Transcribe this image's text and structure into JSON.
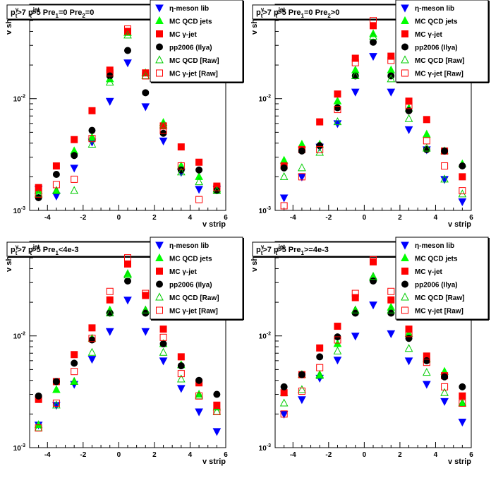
{
  "chart_data": [
    {
      "type": "scatter",
      "title": "p_t^γ>7  p_t^jet>5  Pre_1=0  Pre_2=0",
      "title_parts": {
        "a": "p",
        "a_sup": "γ",
        "a_sub": "t",
        "a_rest": ">7",
        "b": "p",
        "b_sup": "jet",
        "b_sub": "t",
        "b_rest": ">5",
        "c": "Pre",
        "c_sub": "1",
        "c_rest": "=0",
        "d": "Pre",
        "d_sub": "2",
        "d_rest": "=0"
      },
      "xlabel": "v strip",
      "ylabel": "v shape",
      "xlim": [
        -5,
        6
      ],
      "ylim": [
        0.001,
        0.07
      ],
      "yscale": "log",
      "x_ticks": [
        "-4",
        "-2",
        "0",
        "2",
        "4",
        "6"
      ],
      "y_ticks": [
        "10^-3",
        "10^-2"
      ],
      "grid": false,
      "legend_position": "top-right",
      "x": [
        -4.5,
        -3.5,
        -2.5,
        -1.5,
        -0.5,
        0.5,
        1.5,
        2.5,
        3.5,
        4.5,
        5.5
      ],
      "series": [
        {
          "name": "η-meson lib",
          "marker": "triangle-down",
          "color": "#0000ff",
          "filled": true,
          "values": [
            0.00155,
            0.00135,
            0.0024,
            0.0041,
            0.0095,
            0.021,
            0.0085,
            0.0042,
            0.0022,
            0.00155,
            0.00155
          ]
        },
        {
          "name": "MC QCD jets",
          "marker": "triangle-up",
          "color": "#00ff00",
          "filled": true,
          "values": [
            0.0015,
            0.0015,
            0.0034,
            0.0045,
            0.015,
            0.039,
            0.017,
            0.0061,
            0.0025,
            0.002,
            0.00155
          ]
        },
        {
          "name": "MC γ-jet",
          "marker": "square",
          "color": "#ff0000",
          "filled": true,
          "values": [
            0.0016,
            0.0025,
            0.0043,
            0.0078,
            0.018,
            0.04,
            0.017,
            0.0057,
            0.0037,
            0.0027,
            0.00165
          ]
        },
        {
          "name": "pp2006 (Ilya)",
          "marker": "circle",
          "color": "#000000",
          "filled": true,
          "values": [
            0.0013,
            0.0021,
            0.0031,
            0.0052,
            0.016,
            0.027,
            0.0113,
            0.0049,
            0.0023,
            0.0023,
            0.0015
          ]
        },
        {
          "name": "MC QCD [Raw]",
          "marker": "triangle-up",
          "color": "#00cc00",
          "filled": false,
          "values": [
            0.0014,
            0.0015,
            0.0015,
            0.0039,
            0.014,
            0.037,
            0.016,
            0.0058,
            0.0022,
            0.0018,
            0.0015
          ]
        },
        {
          "name": "MC γ-jet [Raw]",
          "marker": "square",
          "color": "#ff0000",
          "filled": false,
          "values": [
            0.0014,
            0.0017,
            0.0019,
            0.0044,
            0.017,
            0.042,
            0.016,
            0.0052,
            0.0025,
            0.00125,
            0.0016
          ]
        }
      ]
    },
    {
      "type": "scatter",
      "title": "p_t^γ>7  p_t^jet>5  Pre_1=0  Pre_2>0",
      "title_parts": {
        "a": "p",
        "a_sup": "γ",
        "a_sub": "t",
        "a_rest": ">7",
        "b": "p",
        "b_sup": "jet",
        "b_sub": "t",
        "b_rest": ">5",
        "c": "Pre",
        "c_sub": "1",
        "c_rest": "=0",
        "d": "Pre",
        "d_sub": "2",
        "d_rest": ">0"
      },
      "xlabel": "v strip",
      "ylabel": "v shape",
      "xlim": [
        -5,
        6
      ],
      "ylim": [
        0.001,
        0.07
      ],
      "yscale": "log",
      "x_ticks": [
        "-4",
        "-2",
        "0",
        "2",
        "4",
        "6"
      ],
      "y_ticks": [
        "10^-3",
        "10^-2"
      ],
      "grid": false,
      "legend_position": "top-right",
      "x": [
        -4.5,
        -3.5,
        -2.5,
        -1.5,
        -0.5,
        0.5,
        1.5,
        2.5,
        3.5,
        4.5,
        5.5
      ],
      "series": [
        {
          "name": "η-meson lib",
          "marker": "triangle-down",
          "color": "#0000ff",
          "filled": true,
          "values": [
            0.0013,
            0.002,
            0.0037,
            0.006,
            0.0115,
            0.024,
            0.0115,
            0.0053,
            0.0035,
            0.0019,
            0.0012
          ]
        },
        {
          "name": "MC QCD jets",
          "marker": "triangle-up",
          "color": "#00ff00",
          "filled": true,
          "values": [
            0.0028,
            0.0039,
            0.0039,
            0.0095,
            0.018,
            0.038,
            0.018,
            0.0082,
            0.0048,
            0.0034,
            0.0026
          ]
        },
        {
          "name": "MC γ-jet",
          "marker": "square",
          "color": "#ff0000",
          "filled": true,
          "values": [
            0.0025,
            0.0035,
            0.0062,
            0.011,
            0.023,
            0.045,
            0.024,
            0.0095,
            0.0065,
            0.0034,
            0.002
          ]
        },
        {
          "name": "pp2006 (Ilya)",
          "marker": "circle",
          "color": "#000000",
          "filled": true,
          "values": [
            0.0024,
            0.0034,
            0.0038,
            0.0083,
            0.016,
            0.032,
            0.016,
            0.0078,
            0.0035,
            0.0034,
            0.0025
          ]
        },
        {
          "name": "MC QCD [Raw]",
          "marker": "triangle-up",
          "color": "#00cc00",
          "filled": false,
          "values": [
            0.002,
            0.0024,
            0.0033,
            0.0062,
            0.016,
            0.036,
            0.015,
            0.0066,
            0.0036,
            0.0019,
            0.0014
          ]
        },
        {
          "name": "MC γ-jet [Raw]",
          "marker": "square",
          "color": "#ff0000",
          "filled": false,
          "values": [
            0.0011,
            0.002,
            0.0035,
            0.008,
            0.021,
            0.05,
            0.022,
            0.0087,
            0.0042,
            0.0025,
            0.0015
          ]
        }
      ]
    },
    {
      "type": "scatter",
      "title": "p_t^γ>7  p_t^jet>5  Pre_1<4e-3",
      "title_parts": {
        "a": "p",
        "a_sup": "γ",
        "a_sub": "t",
        "a_rest": ">7",
        "b": "p",
        "b_sup": "jet",
        "b_sub": "t",
        "b_rest": ">5",
        "c": "Pre",
        "c_sub": "1",
        "c_rest": "<4e-3",
        "d": "",
        "d_sub": "",
        "d_rest": ""
      },
      "xlabel": "v strip",
      "ylabel": "v shape",
      "xlim": [
        -5,
        6
      ],
      "ylim": [
        0.001,
        0.07
      ],
      "yscale": "log",
      "x_ticks": [
        "-4",
        "-2",
        "0",
        "2",
        "4",
        "6"
      ],
      "y_ticks": [
        "10^-3",
        "10^-2"
      ],
      "grid": false,
      "legend_position": "top-right",
      "x": [
        -4.5,
        -3.5,
        -2.5,
        -1.5,
        -0.5,
        0.5,
        1.5,
        2.5,
        3.5,
        4.5,
        5.5
      ],
      "series": [
        {
          "name": "η-meson lib",
          "marker": "triangle-down",
          "color": "#0000ff",
          "filled": true,
          "values": [
            0.0016,
            0.0024,
            0.0037,
            0.0062,
            0.011,
            0.021,
            0.011,
            0.006,
            0.0034,
            0.0021,
            0.0014
          ]
        },
        {
          "name": "MC QCD jets",
          "marker": "triangle-up",
          "color": "#00ff00",
          "filled": true,
          "values": [
            0.0016,
            0.0033,
            0.0039,
            0.0095,
            0.017,
            0.036,
            0.017,
            0.0085,
            0.0055,
            0.003,
            0.0023
          ]
        },
        {
          "name": "MC γ-jet",
          "marker": "square",
          "color": "#ff0000",
          "filled": true,
          "values": [
            0.0027,
            0.0039,
            0.0068,
            0.0118,
            0.021,
            0.044,
            0.023,
            0.0115,
            0.0065,
            0.0038,
            0.0024
          ]
        },
        {
          "name": "pp2006 (Ilya)",
          "marker": "circle",
          "color": "#000000",
          "filled": true,
          "values": [
            0.0029,
            0.0039,
            0.0057,
            0.0092,
            0.016,
            0.031,
            0.016,
            0.0085,
            0.0054,
            0.004,
            0.003
          ]
        },
        {
          "name": "MC QCD [Raw]",
          "marker": "triangle-up",
          "color": "#00cc00",
          "filled": false,
          "values": [
            0.0015,
            0.0024,
            0.0039,
            0.0071,
            0.016,
            0.035,
            0.017,
            0.0071,
            0.0041,
            0.0029,
            0.0021
          ]
        },
        {
          "name": "MC γ-jet [Raw]",
          "marker": "square",
          "color": "#ff0000",
          "filled": false,
          "values": [
            0.0015,
            0.0025,
            0.0048,
            0.0095,
            0.025,
            0.05,
            0.024,
            0.0097,
            0.0046,
            0.0029,
            0.0021
          ]
        }
      ]
    },
    {
      "type": "scatter",
      "title": "p_t^γ>7  p_t^jet>5  Pre_1>=4e-3",
      "title_parts": {
        "a": "p",
        "a_sup": "γ",
        "a_sub": "t",
        "a_rest": ">7",
        "b": "p",
        "b_sup": "jet",
        "b_sub": "t",
        "b_rest": ">5",
        "c": "Pre",
        "c_sub": "1",
        "c_rest": ">=4e-3",
        "d": "",
        "d_sub": "",
        "d_rest": ""
      },
      "xlabel": "v strip",
      "ylabel": "v shape",
      "xlim": [
        -5,
        6
      ],
      "ylim": [
        0.001,
        0.07
      ],
      "yscale": "log",
      "x_ticks": [
        "-4",
        "-2",
        "0",
        "2",
        "4",
        "6"
      ],
      "y_ticks": [
        "10^-3",
        "10^-2"
      ],
      "grid": false,
      "legend_position": "top-right",
      "x": [
        -4.5,
        -3.5,
        -2.5,
        -1.5,
        -0.5,
        0.5,
        1.5,
        2.5,
        3.5,
        4.5,
        5.5
      ],
      "series": [
        {
          "name": "η-meson lib",
          "marker": "triangle-down",
          "color": "#0000ff",
          "filled": true,
          "values": [
            0.002,
            0.0027,
            0.0042,
            0.0061,
            0.01,
            0.019,
            0.0105,
            0.006,
            0.0037,
            0.0026,
            0.0017
          ]
        },
        {
          "name": "MC QCD jets",
          "marker": "triangle-up",
          "color": "#00ff00",
          "filled": true,
          "values": [
            0.0031,
            0.0045,
            0.0045,
            0.0085,
            0.017,
            0.033,
            0.018,
            0.0105,
            0.0062,
            0.0048,
            0.0025
          ]
        },
        {
          "name": "MC γ-jet",
          "marker": "square",
          "color": "#ff0000",
          "filled": true,
          "values": [
            0.0031,
            0.0045,
            0.0078,
            0.0122,
            0.022,
            0.046,
            0.021,
            0.0115,
            0.0066,
            0.0044,
            0.0029
          ]
        },
        {
          "name": "pp2006 (Ilya)",
          "marker": "circle",
          "color": "#000000",
          "filled": true,
          "values": [
            0.0035,
            0.0045,
            0.0065,
            0.0098,
            0.016,
            0.031,
            0.016,
            0.0095,
            0.006,
            0.0043,
            0.0035
          ]
        },
        {
          "name": "MC QCD [Raw]",
          "marker": "triangle-up",
          "color": "#00cc00",
          "filled": false,
          "values": [
            0.0025,
            0.0033,
            0.0044,
            0.0073,
            0.017,
            0.034,
            0.017,
            0.0077,
            0.0047,
            0.0031,
            0.0025
          ]
        },
        {
          "name": "MC γ-jet [Raw]",
          "marker": "square",
          "color": "#ff0000",
          "filled": false,
          "values": [
            0.002,
            0.0032,
            0.0052,
            0.0092,
            0.024,
            0.048,
            0.025,
            0.0105,
            0.0058,
            0.0035,
            0.0025
          ]
        }
      ]
    }
  ]
}
